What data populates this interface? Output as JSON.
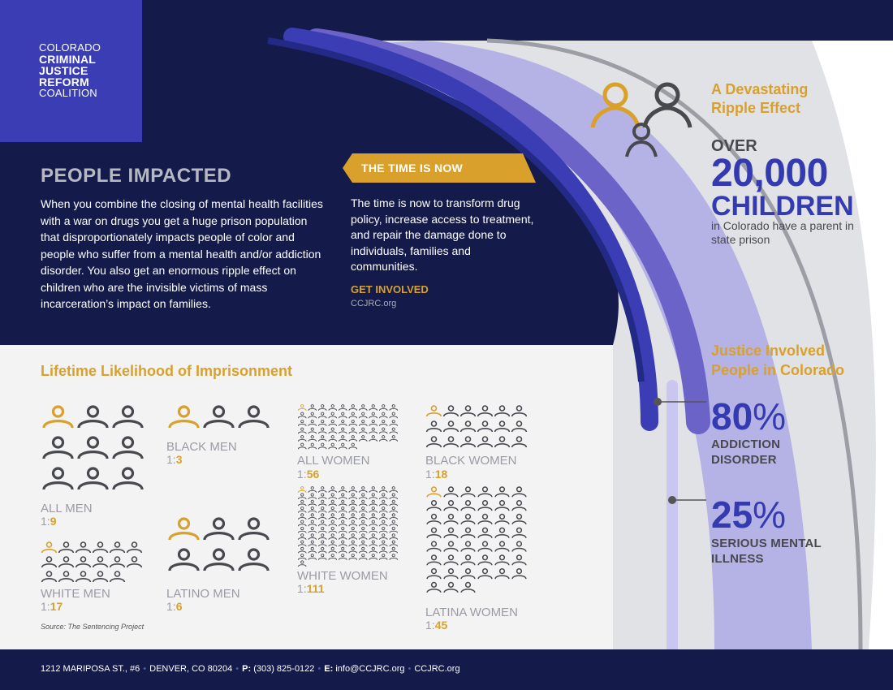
{
  "logo": {
    "line1": "COLORADO",
    "line2": "CRIMINAL",
    "line3": "JUSTICE",
    "line4": "REFORM",
    "line5": "COALITION"
  },
  "people_impacted": {
    "title": "PEOPLE IMPACTED",
    "body": "When you combine the closing of mental health facilities with a war on drugs you get a huge prison population that disproportionately impacts people of color and people who suffer from a mental health and/or addiction disorder. You also get an enormous ripple effect on children who are the invisible victims of mass incarceration’s impact on families."
  },
  "time_is_now": {
    "tag": "THE TIME IS NOW",
    "body": "The time is now to transform drug policy, increase access to treatment, and repair the damage done to individuals, families and communities.",
    "cta": "GET INVOLVED",
    "url": "CCJRC.org"
  },
  "ripple": {
    "title": "A Devastating Ripple Effect",
    "over": "OVER",
    "number": "20,000",
    "word": "CHILDREN",
    "desc": "in Colorado have a parent in state prison"
  },
  "justice": {
    "title": "Justice Involved People in Colorado",
    "stats": [
      {
        "value": "80",
        "sign": "%",
        "label1": "ADDICTION",
        "label2": "DISORDER"
      },
      {
        "value": "25",
        "sign": "%",
        "label1": "SERIOUS MENTAL",
        "label2": "ILLNESS"
      }
    ]
  },
  "lifetime": {
    "title": "Lifetime Likelihood of Imprisonment",
    "groups": [
      {
        "label": "ALL MEN",
        "prefix": "1:",
        "ratio": "9",
        "count": 9
      },
      {
        "label": "BLACK MEN",
        "prefix": "1:",
        "ratio": "3",
        "count": 3
      },
      {
        "label": "ALL WOMEN",
        "prefix": "1:",
        "ratio": "56",
        "count": 56
      },
      {
        "label": "BLACK WOMEN",
        "prefix": "1:",
        "ratio": "18",
        "count": 18
      },
      {
        "label": "WHITE MEN",
        "prefix": "1:",
        "ratio": "17",
        "count": 17
      },
      {
        "label": "LATINO MEN",
        "prefix": "1:",
        "ratio": "6",
        "count": 6
      },
      {
        "label": "WHITE WOMEN",
        "prefix": "1:",
        "ratio": "111",
        "count": 111
      },
      {
        "label": "LATINA WOMEN",
        "prefix": "1:",
        "ratio": "45",
        "count": 45
      }
    ],
    "source": "Source: The Sentencing Project"
  },
  "footer": {
    "address": "1212 MARIPOSA ST., #6",
    "city": "DENVER, CO 80204",
    "phone_label": "P:",
    "phone": "(303) 825-0122",
    "email_label": "E:",
    "email": "info@CCJRC.org",
    "site": "CCJRC.org"
  },
  "colors": {
    "navy": "#141b4b",
    "blue": "#343ab0",
    "gold": "#d9a02b",
    "gray_person": "#48484f"
  },
  "icons": {
    "person": "person-icon",
    "family": "family-icon"
  }
}
